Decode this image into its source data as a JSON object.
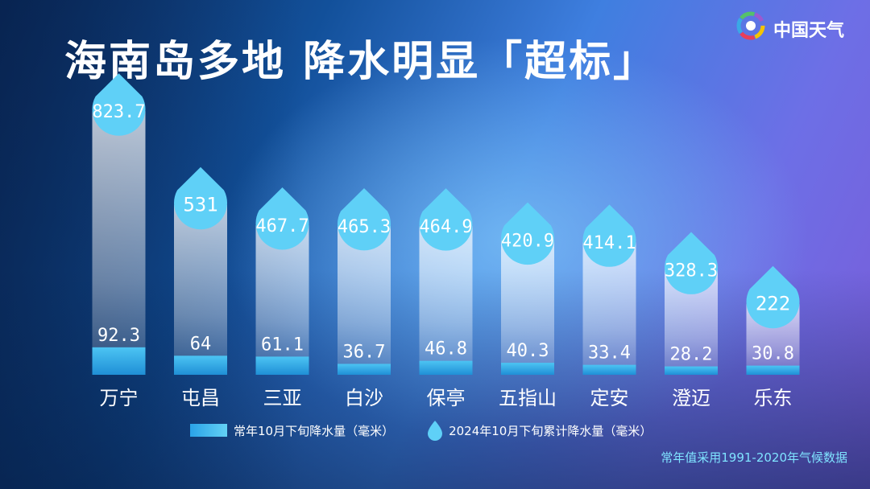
{
  "title": "海南岛多地  降水明显「超标」",
  "brand": {
    "name": "中国天气",
    "icon": "china-weather-logo"
  },
  "chart_data": {
    "type": "bar",
    "categories": [
      "万宁",
      "屯昌",
      "三亚",
      "白沙",
      "保亭",
      "五指山",
      "定安",
      "澄迈",
      "乐东"
    ],
    "series": [
      {
        "name": "常年10月下旬降水量（毫米）",
        "values": [
          92.3,
          64,
          61.1,
          36.7,
          46.8,
          40.3,
          33.4,
          28.2,
          30.8
        ],
        "labels": [
          "92.3",
          "64",
          "61.1",
          "36.7",
          "46.8",
          "40.3",
          "33.4",
          "28.2",
          "30.8"
        ],
        "color": "#3cb6ee"
      },
      {
        "name": "2024年10月下旬累计降水量（毫米）",
        "values": [
          823.7,
          531,
          467.7,
          465.3,
          464.9,
          420.9,
          414.1,
          328.3,
          222
        ],
        "labels": [
          "823.7",
          "531",
          "467.7",
          "465.3",
          "464.9",
          "420.9",
          "414.1",
          "328.3",
          "222"
        ],
        "color": "#5fd0f7"
      }
    ],
    "legend_placement": "bottom",
    "grid": false
  },
  "legend": {
    "normal_label": "常年10月下旬降水量（毫米）",
    "current_label": "2024年10月下旬累计降水量（毫米）"
  },
  "footnote": "常年值采用1991-2020年气候数据"
}
